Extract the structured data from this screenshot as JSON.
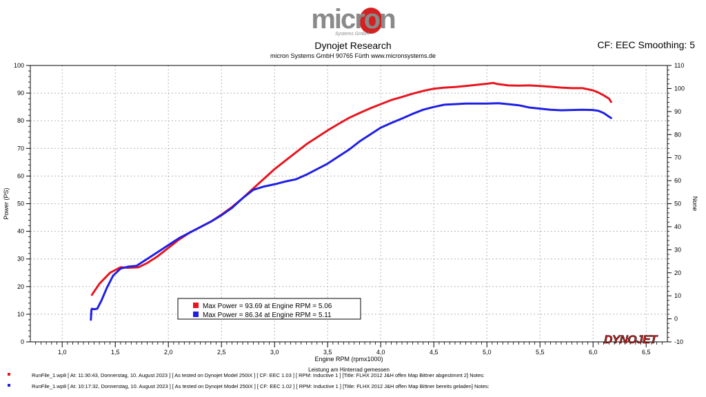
{
  "logo": {
    "brand": "micron",
    "tagline": "Systems GmbH"
  },
  "header": {
    "title": "Dynojet Research",
    "subtitle": "micron Systems GmbH  90765 Fürth www.micronsystems.de",
    "cf_label": "CF: EEC Smoothing: 5"
  },
  "footer_logo": "DYNOJET",
  "chart_data": {
    "type": "line",
    "xlabel": "Engine RPM (rpmx1000)",
    "xlabel2": "Leistung am Hinterrad gemessen",
    "ylabel": "Power (PS)",
    "ylabel_right": "None",
    "xlim": [
      0.7,
      6.7
    ],
    "ylim": [
      0,
      100
    ],
    "ylim_right": [
      -10,
      110
    ],
    "x_ticks": [
      1.0,
      1.5,
      2.0,
      2.5,
      3.0,
      3.5,
      4.0,
      4.5,
      5.0,
      5.5,
      6.0,
      6.5
    ],
    "x_tick_labels": [
      "1,0",
      "1,5",
      "2,0",
      "2,5",
      "3,0",
      "3,5",
      "4,0",
      "4,5",
      "5,0",
      "5,5",
      "6,0",
      "6,5"
    ],
    "y_ticks": [
      0,
      10,
      20,
      30,
      40,
      50,
      60,
      70,
      80,
      90,
      100
    ],
    "y_ticks_right": [
      -10,
      0,
      10,
      20,
      30,
      40,
      50,
      60,
      70,
      80,
      90,
      100,
      110
    ],
    "grid": true,
    "legend_position": "bottom-center",
    "series": [
      {
        "name": "Max Power = 93.69 at Engine RPM = 5.06",
        "color": "#e8141e",
        "x": [
          1.28,
          1.35,
          1.45,
          1.55,
          1.62,
          1.72,
          1.8,
          1.9,
          2.0,
          2.1,
          2.2,
          2.3,
          2.4,
          2.5,
          2.6,
          2.7,
          2.8,
          2.9,
          3.0,
          3.1,
          3.2,
          3.3,
          3.4,
          3.5,
          3.6,
          3.7,
          3.8,
          3.9,
          4.0,
          4.1,
          4.2,
          4.3,
          4.4,
          4.5,
          4.6,
          4.7,
          4.8,
          4.9,
          5.0,
          5.06,
          5.1,
          5.2,
          5.3,
          5.4,
          5.5,
          5.6,
          5.7,
          5.8,
          5.9,
          6.0,
          6.05,
          6.1,
          6.15,
          6.17
        ],
        "y": [
          17,
          21,
          25,
          27,
          26.8,
          27,
          28.5,
          31,
          34,
          37,
          39.5,
          41.5,
          43.5,
          46,
          48.8,
          52,
          55.5,
          59,
          62.5,
          65.5,
          68.5,
          71.5,
          74,
          76.5,
          78.8,
          81,
          82.8,
          84.5,
          86,
          87.5,
          88.6,
          89.8,
          90.8,
          91.6,
          92,
          92.2,
          92.6,
          93,
          93.4,
          93.69,
          93.3,
          92.8,
          92.7,
          92.8,
          92.6,
          92.3,
          92,
          91.8,
          91.8,
          91,
          90.2,
          89.2,
          88,
          86.8
        ]
      },
      {
        "name": "Max Power = 86.34 at Engine RPM = 5.11",
        "color": "#1e1ee6",
        "x": [
          1.27,
          1.275,
          1.28,
          1.3,
          1.33,
          1.37,
          1.42,
          1.48,
          1.55,
          1.62,
          1.7,
          1.8,
          1.9,
          2.0,
          2.1,
          2.2,
          2.3,
          2.4,
          2.5,
          2.6,
          2.7,
          2.8,
          2.9,
          3.0,
          3.1,
          3.2,
          3.3,
          3.4,
          3.5,
          3.6,
          3.7,
          3.8,
          3.9,
          4.0,
          4.1,
          4.2,
          4.3,
          4.4,
          4.5,
          4.6,
          4.7,
          4.8,
          4.9,
          5.0,
          5.11,
          5.2,
          5.3,
          5.4,
          5.5,
          5.6,
          5.7,
          5.8,
          5.9,
          6.0,
          6.05,
          6.1,
          6.15,
          6.17
        ],
        "y": [
          8,
          11.5,
          12,
          11.8,
          12,
          15,
          19.5,
          24,
          26.5,
          27.2,
          27.5,
          30,
          32.5,
          35,
          37.5,
          39.5,
          41.5,
          43.5,
          45.8,
          48.5,
          52,
          55,
          56.2,
          57,
          58,
          58.8,
          60.5,
          62.5,
          64.5,
          67,
          69.5,
          72.5,
          75,
          77.5,
          79.2,
          80.8,
          82.5,
          84,
          85,
          85.8,
          86,
          86.2,
          86.2,
          86.2,
          86.34,
          86,
          85.6,
          84.8,
          84.4,
          84,
          83.8,
          83.9,
          84,
          83.9,
          83.6,
          82.8,
          81.5,
          81
        ]
      }
    ]
  },
  "runs": [
    {
      "color": "#e8141e",
      "text": "RunFile_1.wp8 [ At: 11:30:43, Donnerstag, 10. August 2023 ] [ As tested on Dynojet Model 250iX ] [ CF: EEC 1.03 ] [ RPM: Inductive 1 ] [Title: FLHX 2012 J&H offen Map Bittner abgestimmt 2]  Notes:"
    },
    {
      "color": "#1e1ee6",
      "text": "RunFile_1.wp8 [ At: 10:17:32, Donnerstag, 10. August 2023 ] [ As tested on Dynojet Model 250iX ] [ CF: EEC 1.02 ] [ RPM: Inductive 1 ] [Title: FLHX 2012 J&H offen Map Bittner bereits geladen]  Notes:"
    }
  ]
}
